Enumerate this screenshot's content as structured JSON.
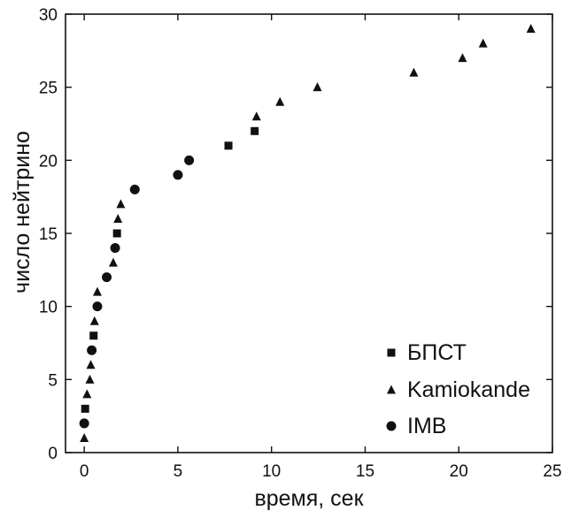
{
  "chart_data": {
    "type": "scatter",
    "title": "",
    "xlabel": "время,  сек",
    "ylabel": "число  нейтрино",
    "xlim": [
      -1,
      25
    ],
    "ylim": [
      0,
      30
    ],
    "xticks": [
      0,
      5,
      10,
      15,
      20,
      25
    ],
    "yticks": [
      0,
      5,
      10,
      15,
      20,
      25,
      30
    ],
    "grid": false,
    "legend_position": "bottom-right",
    "series": [
      {
        "name": "БПСТ",
        "marker": "square",
        "color": "#111111",
        "points": [
          [
            0.05,
            3
          ],
          [
            0.5,
            8
          ],
          [
            1.75,
            15
          ],
          [
            7.7,
            21
          ],
          [
            9.1,
            22
          ]
        ]
      },
      {
        "name": "Kamiokande",
        "marker": "triangle",
        "color": "#111111",
        "points": [
          [
            0.0,
            1
          ],
          [
            0.15,
            4
          ],
          [
            0.3,
            5
          ],
          [
            0.35,
            6
          ],
          [
            0.55,
            9
          ],
          [
            0.7,
            11
          ],
          [
            1.55,
            13
          ],
          [
            1.8,
            16
          ],
          [
            1.95,
            17
          ],
          [
            9.2,
            23
          ],
          [
            10.45,
            24
          ],
          [
            12.45,
            25
          ],
          [
            17.6,
            26
          ],
          [
            20.2,
            27
          ],
          [
            21.3,
            28
          ],
          [
            23.85,
            29
          ]
        ]
      },
      {
        "name": "IMB",
        "marker": "circle",
        "color": "#111111",
        "points": [
          [
            0.0,
            2
          ],
          [
            0.4,
            7
          ],
          [
            0.7,
            10
          ],
          [
            1.2,
            12
          ],
          [
            1.65,
            14
          ],
          [
            2.7,
            18
          ],
          [
            5.0,
            19
          ],
          [
            5.6,
            20
          ]
        ]
      }
    ]
  }
}
